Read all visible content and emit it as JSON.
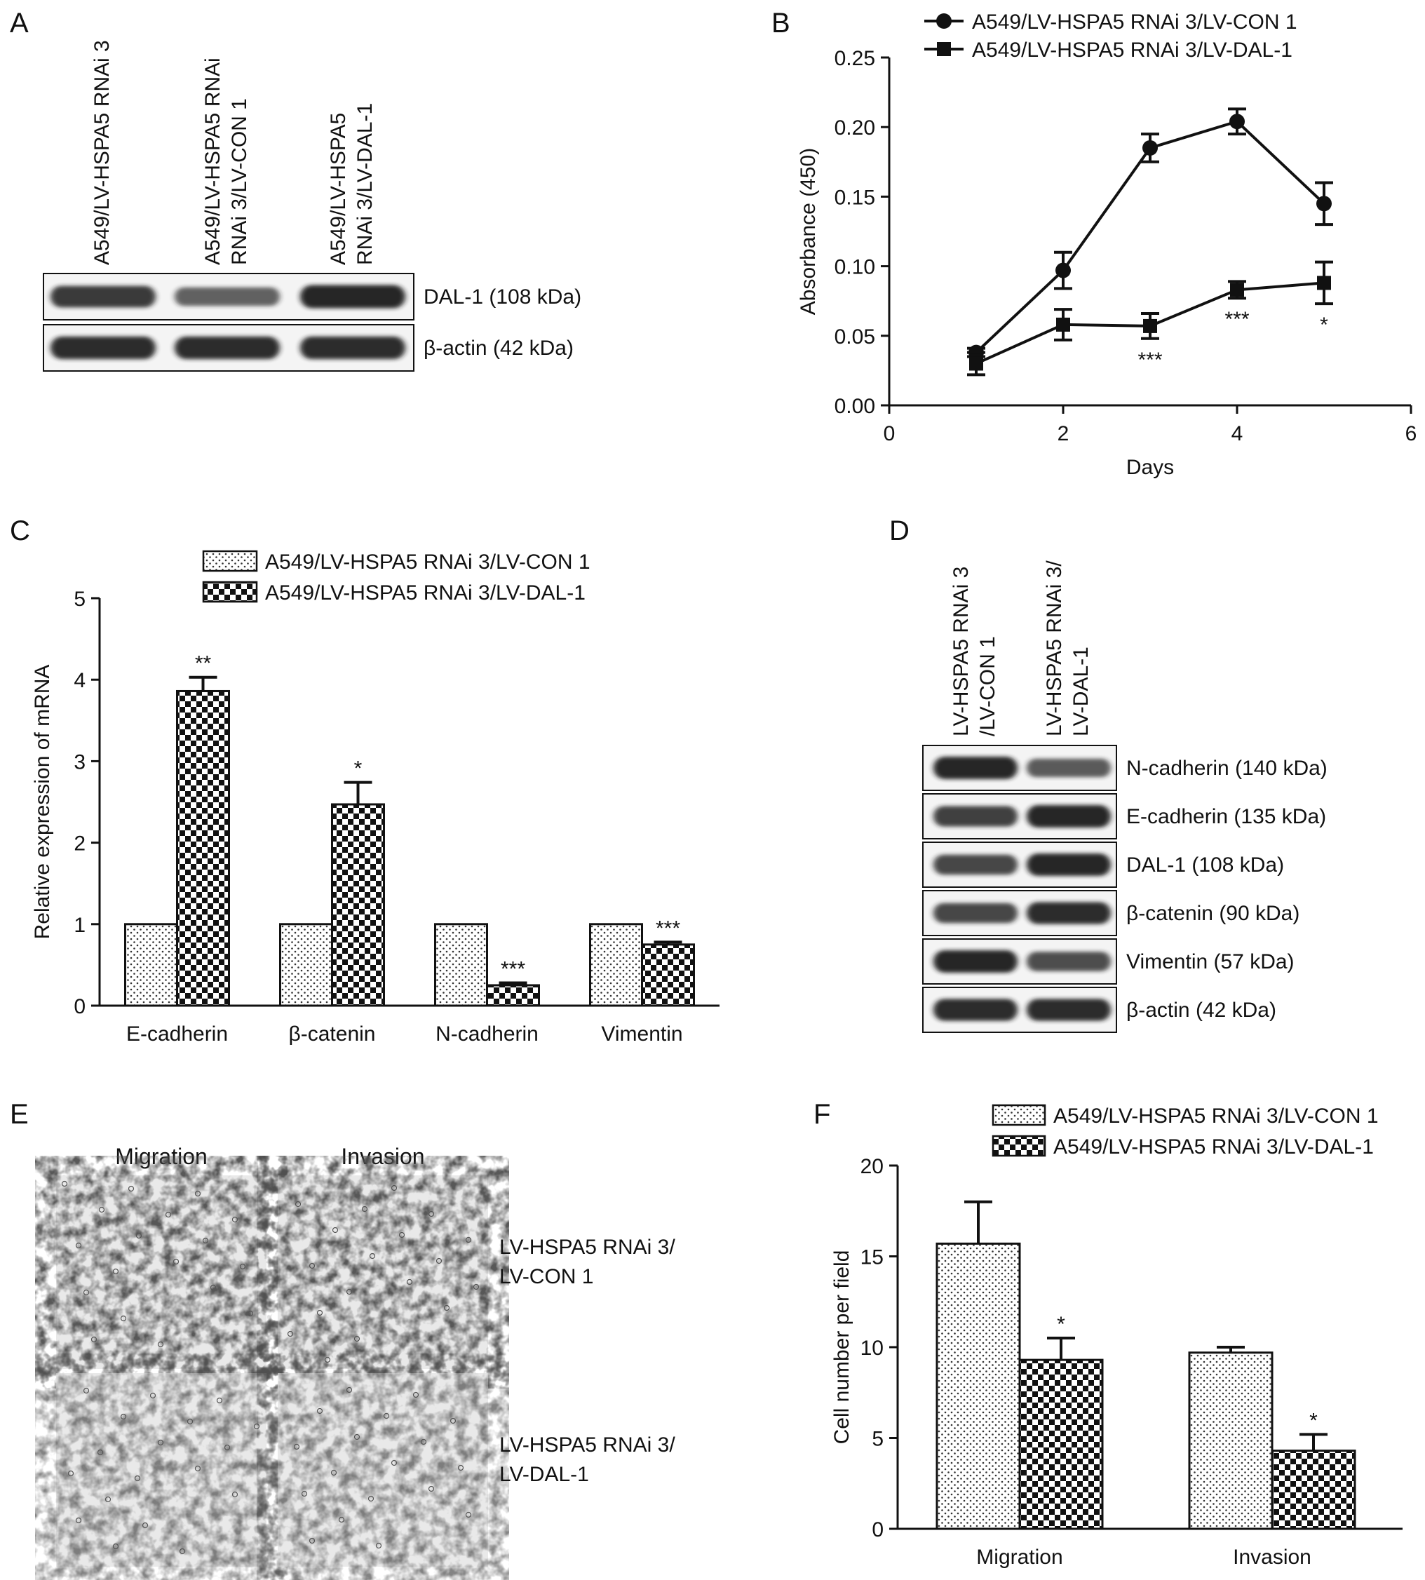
{
  "colors": {
    "ink": "#111111",
    "blot_band": "#1c1c1c",
    "blot_bg": "#f4f4f4",
    "photo_bg": "#e9e9e9"
  },
  "panel_labels": {
    "a": "A",
    "b": "B",
    "c": "C",
    "d": "D",
    "e": "E",
    "f": "F"
  },
  "panel_a": {
    "lanes": [
      [
        "A549/LV-HSPA5 RNAi 3"
      ],
      [
        "A549/LV-HSPA5 RNAi",
        "RNAi 3/LV-CON 1"
      ],
      [
        "A549/LV-HSPA5",
        "RNAi 3/LV-DAL-1"
      ]
    ],
    "blots": [
      {
        "label": "DAL-1 (108 kDa)",
        "band_intensity": [
          0.85,
          0.55,
          1.0
        ]
      },
      {
        "label": "β-actin (42 kDa)",
        "band_intensity": [
          0.95,
          0.95,
          0.95
        ]
      }
    ]
  },
  "panel_d": {
    "lanes": [
      [
        "LV-HSPA5 RNAi 3",
        "/LV-CON 1"
      ],
      [
        "LV-HSPA5 RNAi 3/",
        "LV-DAL-1"
      ]
    ],
    "blots": [
      {
        "label": "N-cadherin (140 kDa)",
        "band_intensity": [
          1.0,
          0.6
        ]
      },
      {
        "label": "E-cadherin (135 kDa)",
        "band_intensity": [
          0.8,
          1.0
        ]
      },
      {
        "label": "DAL-1 (108 kDa)",
        "band_intensity": [
          0.75,
          1.0
        ]
      },
      {
        "label": "β-catenin (90 kDa)",
        "band_intensity": [
          0.75,
          0.95
        ]
      },
      {
        "label": "Vimentin (57 kDa)",
        "band_intensity": [
          1.0,
          0.7
        ]
      },
      {
        "label": "β-actin (42 kDa)",
        "band_intensity": [
          0.95,
          0.95
        ]
      }
    ]
  },
  "panel_e": {
    "columns": [
      "Migration",
      "Invasion"
    ],
    "rows": [
      [
        "LV-HSPA5 RNAi 3/",
        "LV-CON 1"
      ],
      [
        "LV-HSPA5 RNAi 3/",
        "LV-DAL-1"
      ]
    ]
  },
  "chart_data": [
    {
      "panel": "B",
      "type": "line",
      "xlabel": "Days",
      "ylabel": "Absorbance (450)",
      "xlim": [
        0,
        6
      ],
      "ylim": [
        0,
        0.25
      ],
      "xticks": [
        "0",
        "2",
        "4",
        "6"
      ],
      "yticks": [
        "0.00",
        "0.05",
        "0.10",
        "0.15",
        "0.20",
        "0.25"
      ],
      "legend_position": "top",
      "series": [
        {
          "name": "A549/LV-HSPA5 RNAi 3/LV-CON 1",
          "marker": "circle",
          "x": [
            1,
            2,
            3,
            4,
            5
          ],
          "y": [
            0.038,
            0.097,
            0.185,
            0.204,
            0.145
          ],
          "err": [
            0.003,
            0.013,
            0.01,
            0.009,
            0.015
          ],
          "annotations": [
            "",
            "",
            "",
            "",
            ""
          ]
        },
        {
          "name": "A549/LV-HSPA5 RNAi 3/LV-DAL-1",
          "marker": "square",
          "x": [
            1,
            2,
            3,
            4,
            5
          ],
          "y": [
            0.03,
            0.058,
            0.057,
            0.083,
            0.088
          ],
          "err": [
            0.008,
            0.011,
            0.009,
            0.006,
            0.015
          ],
          "annotations": [
            "",
            "",
            "***",
            "***",
            "*"
          ]
        }
      ]
    },
    {
      "panel": "C",
      "type": "bar",
      "xlabel": "",
      "ylabel": "Relative expression of mRNA",
      "ylim": [
        0,
        5
      ],
      "yticks": [
        "0",
        "1",
        "2",
        "3",
        "4",
        "5"
      ],
      "categories": [
        "E-cadherin",
        "β-catenin",
        "N-cadherin",
        "Vimentin"
      ],
      "legend_position": "top",
      "series": [
        {
          "name": "A549/LV-HSPA5 RNAi 3/LV-CON 1",
          "pattern": "dots",
          "values": [
            1.0,
            1.0,
            1.0,
            1.0
          ],
          "err": [
            0,
            0,
            0,
            0
          ],
          "annotations": [
            "",
            "",
            "",
            ""
          ]
        },
        {
          "name": "A549/LV-HSPA5 RNAi 3/LV-DAL-1",
          "pattern": "checker",
          "values": [
            3.86,
            2.47,
            0.25,
            0.75
          ],
          "err": [
            0.17,
            0.27,
            0.03,
            0.03
          ],
          "annotations": [
            "**",
            "*",
            "***",
            "***"
          ]
        }
      ]
    },
    {
      "panel": "F",
      "type": "bar",
      "xlabel": "",
      "ylabel": "Cell number per field",
      "ylim": [
        0,
        20
      ],
      "yticks": [
        "0",
        "5",
        "10",
        "15",
        "20"
      ],
      "categories": [
        "Migration",
        "Invasion"
      ],
      "legend_position": "top-right",
      "series": [
        {
          "name": "A549/LV-HSPA5 RNAi 3/LV-CON 1",
          "pattern": "dots",
          "values": [
            15.7,
            9.7
          ],
          "err": [
            2.3,
            0.3
          ],
          "annotations": [
            "",
            ""
          ]
        },
        {
          "name": "A549/LV-HSPA5 RNAi 3/LV-DAL-1",
          "pattern": "checker",
          "values": [
            9.3,
            4.3
          ],
          "err": [
            1.2,
            0.9
          ],
          "annotations": [
            "*",
            "*"
          ]
        }
      ]
    }
  ]
}
